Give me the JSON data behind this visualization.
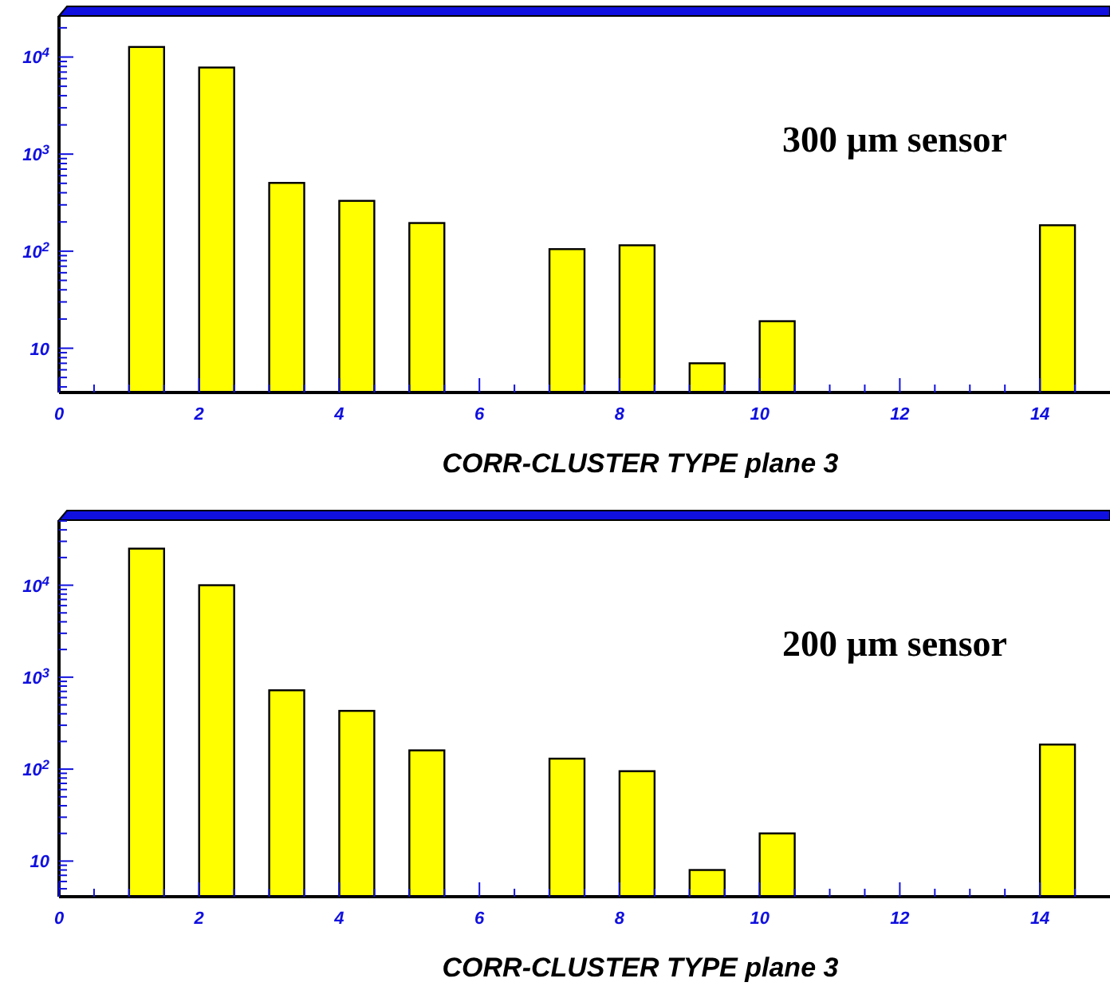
{
  "chart_data": [
    {
      "type": "bar",
      "x": [
        1.25,
        2.25,
        3.25,
        4.25,
        5.25,
        7.25,
        8.25,
        9.25,
        10.25,
        14.25
      ],
      "values": [
        12700,
        7800,
        505,
        330,
        195,
        105,
        115,
        7,
        19,
        185
      ],
      "color": "#ffff00",
      "log": true,
      "xlabel": "CORR-CLUSTER TYPE  plane 3",
      "annotations": [
        "300 µm sensor"
      ],
      "xlim": [
        0,
        15
      ],
      "xticks": [
        0,
        {
          "value": 0.5,
          "label": null
        },
        {
          "value": 1,
          "label": null
        },
        {
          "value": 1.5,
          "label": null
        },
        2,
        {
          "value": 2.5,
          "label": null
        },
        {
          "value": 3,
          "label": null
        },
        {
          "value": 3.5,
          "label": null
        },
        4,
        {
          "value": 4.5,
          "label": null
        },
        {
          "value": 5,
          "label": null
        },
        {
          "value": 5.5,
          "label": null
        },
        6,
        {
          "value": 6.5,
          "label": null
        },
        {
          "value": 7,
          "label": null
        },
        {
          "value": 7.5,
          "label": null
        },
        8,
        {
          "value": 8.5,
          "label": null
        },
        {
          "value": 9,
          "label": null
        },
        {
          "value": 9.5,
          "label": null
        },
        10,
        {
          "value": 10.5,
          "label": null
        },
        {
          "value": 11,
          "label": null
        },
        {
          "value": 11.5,
          "label": null
        },
        12,
        {
          "value": 12.5,
          "label": null
        },
        {
          "value": 13,
          "label": null
        },
        {
          "value": 13.5,
          "label": null
        },
        14,
        {
          "value": 14.5,
          "label": null
        }
      ],
      "ylim": [
        3.5,
        26500
      ],
      "yticks": [
        {
          "value": 4,
          "label": null
        },
        {
          "value": 5,
          "label": null
        },
        {
          "value": 6,
          "label": null
        },
        {
          "value": 7,
          "label": null
        },
        {
          "value": 8,
          "label": null
        },
        {
          "value": 9,
          "label": null
        },
        10,
        {
          "value": 20,
          "label": null
        },
        {
          "value": 30,
          "label": null
        },
        {
          "value": 40,
          "label": null
        },
        {
          "value": 50,
          "label": null
        },
        {
          "value": 60,
          "label": null
        },
        {
          "value": 70,
          "label": null
        },
        {
          "value": 80,
          "label": null
        },
        {
          "value": 90,
          "label": null
        },
        {
          "value": 100,
          "label": "10$^{2}$"
        },
        {
          "value": 200,
          "label": null
        },
        {
          "value": 300,
          "label": null
        },
        {
          "value": 400,
          "label": null
        },
        {
          "value": 500,
          "label": null
        },
        {
          "value": 600,
          "label": null
        },
        {
          "value": 700,
          "label": null
        },
        {
          "value": 800,
          "label": null
        },
        {
          "value": 900,
          "label": null
        },
        {
          "value": 1000,
          "label": "10$^{3}$"
        },
        {
          "value": 2000,
          "label": null
        },
        {
          "value": 3000,
          "label": null
        },
        {
          "value": 4000,
          "label": null
        },
        {
          "value": 5000,
          "label": null
        },
        {
          "value": 6000,
          "label": null
        },
        {
          "value": 7000,
          "label": null
        },
        {
          "value": 8000,
          "label": null
        },
        {
          "value": 9000,
          "label": null
        },
        {
          "value": 10000,
          "label": "10$^{4}$"
        },
        {
          "value": 20000,
          "label": null
        }
      ]
    },
    {
      "type": "bar",
      "x": [
        1.25,
        2.25,
        3.25,
        4.25,
        5.25,
        7.25,
        8.25,
        9.25,
        10.25,
        14.25
      ],
      "values": [
        25000,
        10000,
        720,
        430,
        160,
        130,
        95,
        8,
        20,
        185
      ],
      "color": "#ffff00",
      "log": true,
      "xlabel": "CORR-CLUSTER TYPE  plane 3",
      "annotations": [
        "200 µm sensor"
      ],
      "xlim": [
        0,
        15
      ],
      "xticks": [
        0,
        {
          "value": 0.5,
          "label": null
        },
        {
          "value": 1,
          "label": null
        },
        {
          "value": 1.5,
          "label": null
        },
        2,
        {
          "value": 2.5,
          "label": null
        },
        {
          "value": 3,
          "label": null
        },
        {
          "value": 3.5,
          "label": null
        },
        4,
        {
          "value": 4.5,
          "label": null
        },
        {
          "value": 5,
          "label": null
        },
        {
          "value": 5.5,
          "label": null
        },
        6,
        {
          "value": 6.5,
          "label": null
        },
        {
          "value": 7,
          "label": null
        },
        {
          "value": 7.5,
          "label": null
        },
        8,
        {
          "value": 8.5,
          "label": null
        },
        {
          "value": 9,
          "label": null
        },
        {
          "value": 9.5,
          "label": null
        },
        10,
        {
          "value": 10.5,
          "label": null
        },
        {
          "value": 11,
          "label": null
        },
        {
          "value": 11.5,
          "label": null
        },
        12,
        {
          "value": 12.5,
          "label": null
        },
        {
          "value": 13,
          "label": null
        },
        {
          "value": 13.5,
          "label": null
        },
        14,
        {
          "value": 14.5,
          "label": null
        }
      ],
      "ylim": [
        4.1,
        51000
      ],
      "yticks": [
        {
          "value": 5,
          "label": null
        },
        {
          "value": 6,
          "label": null
        },
        {
          "value": 7,
          "label": null
        },
        {
          "value": 8,
          "label": null
        },
        {
          "value": 9,
          "label": null
        },
        10,
        {
          "value": 20,
          "label": null
        },
        {
          "value": 30,
          "label": null
        },
        {
          "value": 40,
          "label": null
        },
        {
          "value": 50,
          "label": null
        },
        {
          "value": 60,
          "label": null
        },
        {
          "value": 70,
          "label": null
        },
        {
          "value": 80,
          "label": null
        },
        {
          "value": 90,
          "label": null
        },
        {
          "value": 100,
          "label": "10$^{2}$"
        },
        {
          "value": 200,
          "label": null
        },
        {
          "value": 300,
          "label": null
        },
        {
          "value": 400,
          "label": null
        },
        {
          "value": 500,
          "label": null
        },
        {
          "value": 600,
          "label": null
        },
        {
          "value": 700,
          "label": null
        },
        {
          "value": 800,
          "label": null
        },
        {
          "value": 900,
          "label": null
        },
        {
          "value": 1000,
          "label": "10$^{3}$"
        },
        {
          "value": 2000,
          "label": null
        },
        {
          "value": 3000,
          "label": null
        },
        {
          "value": 4000,
          "label": null
        },
        {
          "value": 5000,
          "label": null
        },
        {
          "value": 6000,
          "label": null
        },
        {
          "value": 7000,
          "label": null
        },
        {
          "value": 8000,
          "label": null
        },
        {
          "value": 9000,
          "label": null
        },
        {
          "value": 10000,
          "label": "10$^{4}$"
        },
        {
          "value": 20000,
          "label": null
        },
        {
          "value": 30000,
          "label": null
        },
        {
          "value": 40000,
          "label": null
        },
        {
          "value": 50000,
          "label": null
        }
      ]
    }
  ]
}
